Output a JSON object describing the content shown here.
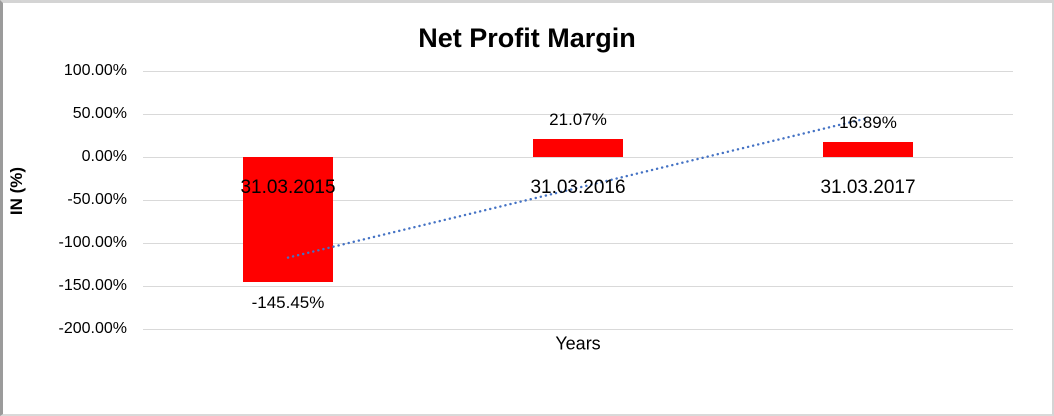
{
  "chart_data": {
    "type": "bar",
    "title": "Net Profit Margin",
    "xlabel": "Years",
    "ylabel": "IN (%)",
    "categories": [
      "31.03.2015",
      "31.03.2016",
      "31.03.2017"
    ],
    "series": [
      {
        "name": "Net Profit Margin",
        "values": [
          -145.45,
          21.07,
          16.89
        ],
        "data_labels": [
          "-145.45%",
          "21.07%",
          "16.89%"
        ],
        "color": "#FF0000"
      }
    ],
    "ylim": [
      -200,
      100
    ],
    "ytick_step": 50,
    "ytick_labels": [
      "100.00%",
      "50.00%",
      "0.00%",
      "-50.00%",
      "-100.00%",
      "-150.00%",
      "-200.00%"
    ],
    "grid": true,
    "legend": "none",
    "trendline": {
      "type": "linear",
      "line_style": "dotted",
      "color": "#4472C4"
    }
  },
  "colors": {
    "bar": "#FF0000",
    "gridline": "#D9D9D9",
    "trendline": "#4472C4",
    "text": "#000000"
  }
}
